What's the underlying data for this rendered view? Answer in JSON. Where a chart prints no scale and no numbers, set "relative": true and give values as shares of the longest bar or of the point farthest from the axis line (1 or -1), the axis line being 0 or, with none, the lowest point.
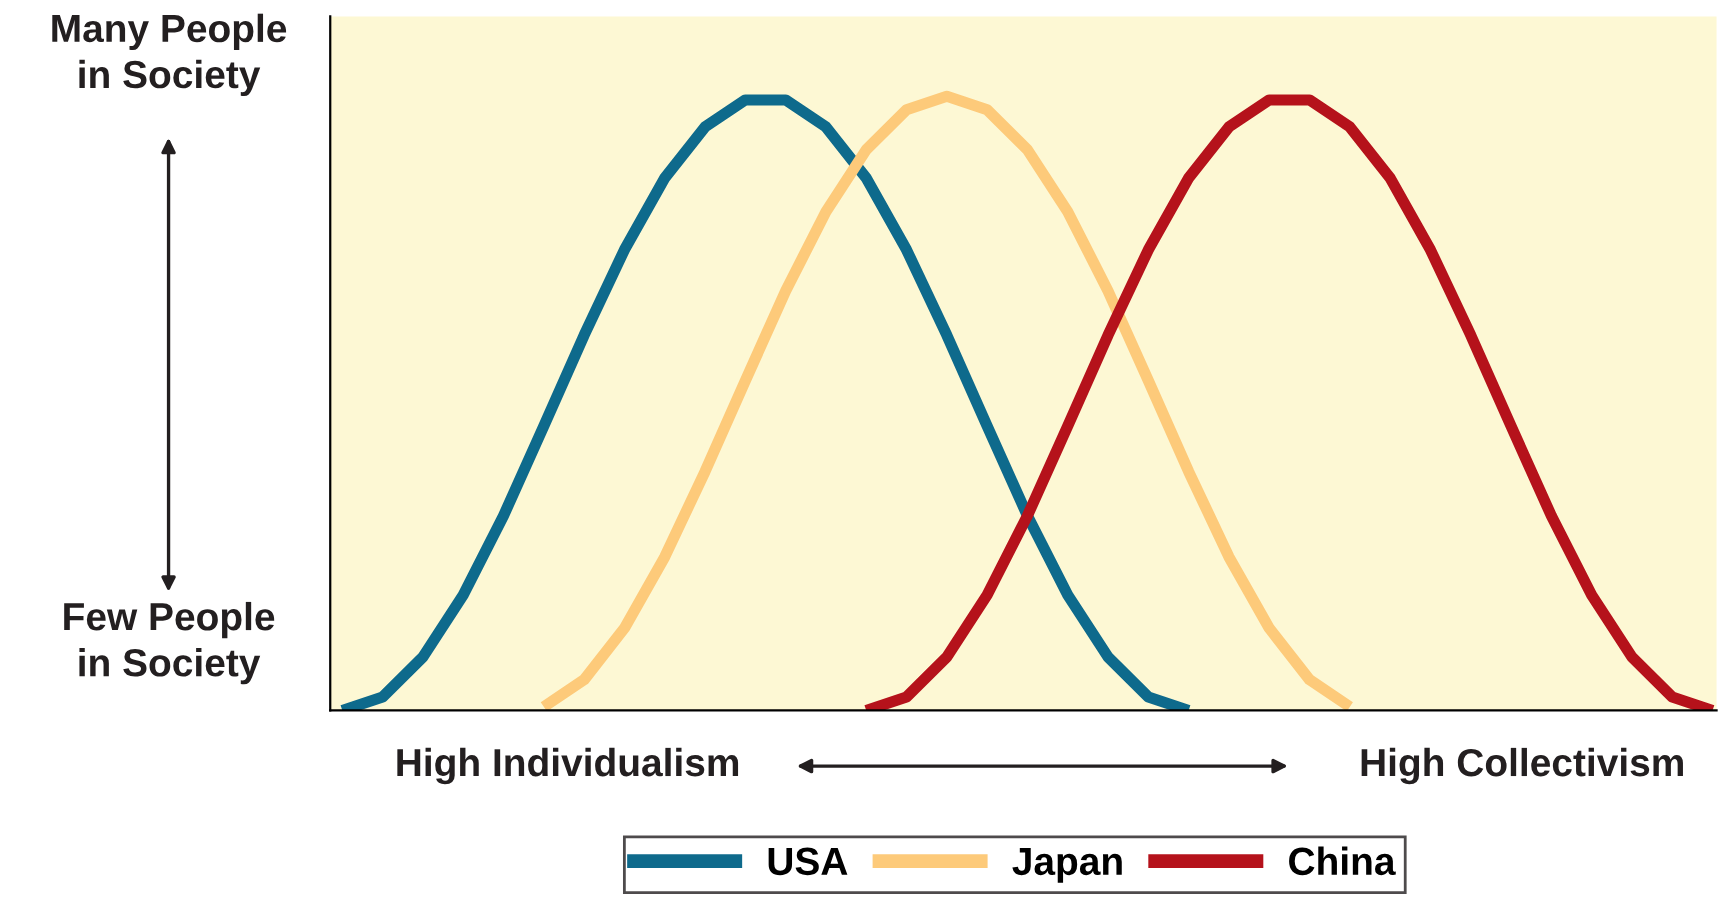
{
  "chart_data": {
    "type": "line",
    "relative": true,
    "grid": false,
    "legend": "bottom",
    "marker": "none",
    "line_style": "solid",
    "categories": [
      null,
      null,
      null,
      null,
      null,
      null,
      null,
      null,
      null,
      null,
      null,
      null,
      null,
      null,
      null,
      null,
      null,
      null,
      null,
      null,
      null,
      null,
      null,
      null,
      null,
      null,
      null,
      null,
      null,
      null,
      null,
      null,
      null,
      null,
      null
    ],
    "series": [
      {
        "name": "USA",
        "color": "#0e6a8c",
        "values": [
          0,
          0.022,
          0.087,
          0.188,
          0.317,
          0.463,
          0.611,
          0.75,
          0.867,
          0.95,
          0.994,
          0.994,
          0.95,
          0.867,
          0.75,
          0.611,
          0.463,
          0.317,
          0.188,
          0.087,
          0.022,
          0,
          null,
          null,
          null,
          null,
          null,
          null,
          null,
          null,
          null,
          null,
          null,
          null,
          null
        ]
      },
      {
        "name": "Japan",
        "color": "#fdca7a",
        "values": [
          null,
          null,
          null,
          null,
          null,
          0.006,
          0.05,
          0.134,
          0.25,
          0.389,
          0.537,
          0.683,
          0.812,
          0.913,
          0.978,
          1,
          0.978,
          0.913,
          0.812,
          0.683,
          0.537,
          0.389,
          0.25,
          0.134,
          0.05,
          0.006,
          null,
          null,
          null,
          null,
          null,
          null,
          null,
          null,
          null
        ]
      },
      {
        "name": "China",
        "color": "#b5121b",
        "values": [
          null,
          null,
          null,
          null,
          null,
          null,
          null,
          null,
          null,
          null,
          null,
          null,
          null,
          0,
          0.022,
          0.087,
          0.188,
          0.317,
          0.463,
          0.611,
          0.75,
          0.867,
          0.95,
          0.994,
          0.994,
          0.95,
          0.867,
          0.75,
          0.611,
          0.463,
          0.317,
          0.188,
          0.087,
          0.022,
          0
        ]
      }
    ],
    "annotations": [
      "Many People\nin Society",
      "Few People\nin Society",
      "High Individualism",
      "High Collectivism"
    ]
  }
}
